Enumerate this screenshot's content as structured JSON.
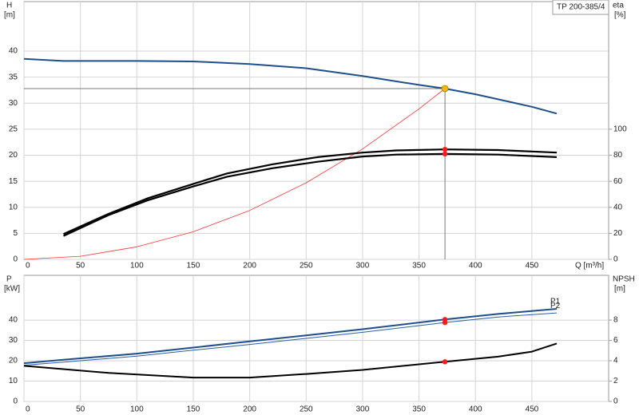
{
  "chart_data": [
    {
      "type": "line",
      "title": "TP 200-385/4",
      "xlabel": "Q [m³/h]",
      "ylabel": "H",
      "yunit": "[m]",
      "y2label": "eta",
      "y2unit": "[%]",
      "xlim": [
        0,
        518
      ],
      "xticks": [
        0,
        50,
        100,
        150,
        200,
        250,
        300,
        350,
        400,
        450
      ],
      "ylim": [
        0,
        49.5
      ],
      "yticks": [
        0,
        5,
        10,
        15,
        20,
        25,
        30,
        35,
        40
      ],
      "y2lim": [
        0,
        198
      ],
      "y2ticks": [
        0,
        20,
        40,
        60,
        80,
        100
      ],
      "grid": true,
      "marked_x": 373,
      "marker_color": "#ff1a1a",
      "duty_point": {
        "x": 373,
        "y": 32.8,
        "color": "#f5b800"
      },
      "series": [
        {
          "color": "#1f4e8c",
          "width": 2,
          "x": [
            0,
            35,
            100,
            150,
            200,
            250,
            300,
            350,
            373,
            400,
            450,
            472
          ],
          "values": [
            38.5,
            38.1,
            38.1,
            38.0,
            37.5,
            36.7,
            35.2,
            33.5,
            32.8,
            31.7,
            29.3,
            28.0
          ]
        },
        {
          "color": "#ff3333",
          "width": 0.8,
          "x": [
            0,
            50,
            100,
            150,
            200,
            250,
            300,
            350,
            373
          ],
          "values": [
            0,
            0.6,
            2.4,
            5.3,
            9.4,
            14.7,
            21.2,
            28.9,
            32.8
          ]
        },
        {
          "color": "#000000",
          "width": 2.2,
          "axis": "y2",
          "marked": true,
          "x": [
            35,
            75,
            110,
            150,
            180,
            220,
            260,
            300,
            330,
            373,
            420,
            472
          ],
          "values": [
            19.5,
            35,
            47,
            58,
            66,
            73,
            78.5,
            82,
            83.7,
            84.5,
            84,
            82
          ]
        },
        {
          "color": "#000000",
          "width": 2.2,
          "axis": "y2",
          "marked": true,
          "x": [
            35,
            75,
            110,
            150,
            180,
            220,
            260,
            300,
            330,
            373,
            420,
            472
          ],
          "values": [
            18,
            34,
            45.5,
            56,
            63.5,
            70,
            75,
            79,
            80.5,
            81,
            80.5,
            78.5
          ]
        }
      ]
    },
    {
      "type": "line",
      "ylabel": "P",
      "yunit": "[kW]",
      "y2label": "NPSH",
      "y2unit": "[m]",
      "xlim": [
        0,
        518
      ],
      "xticks": [
        0,
        50,
        100,
        150,
        200,
        250,
        300,
        350,
        400,
        450
      ],
      "ylim": [
        0,
        62
      ],
      "yticks": [
        0,
        10,
        20,
        30,
        40
      ],
      "y2lim": [
        0,
        12.4
      ],
      "y2ticks": [
        0,
        2,
        4,
        6,
        8
      ],
      "grid": true,
      "marked_x": 373,
      "marker_color": "#ff1a1a",
      "series": [
        {
          "name": "P1",
          "color": "#1f4e8c",
          "width": 2,
          "marked": true,
          "x": [
            0,
            35,
            100,
            150,
            200,
            250,
            300,
            373,
            420,
            472
          ],
          "values": [
            18.8,
            20.5,
            23.5,
            26.5,
            29.5,
            32.5,
            35.5,
            40.3,
            43,
            45.5
          ]
        },
        {
          "name": "P2",
          "color": "#2a5da8",
          "width": 1,
          "marked": true,
          "x": [
            0,
            35,
            100,
            150,
            200,
            250,
            300,
            373,
            420,
            472
          ],
          "values": [
            17.8,
            19.3,
            22.3,
            25.2,
            28,
            31,
            34,
            38.8,
            41.5,
            43.5
          ]
        },
        {
          "color": "#000000",
          "width": 2,
          "axis": "y2",
          "marked": true,
          "x": [
            0,
            75,
            150,
            200,
            250,
            300,
            373,
            420,
            450,
            472
          ],
          "values": [
            3.5,
            2.8,
            2.35,
            2.35,
            2.7,
            3.1,
            3.9,
            4.4,
            4.9,
            5.7
          ]
        }
      ]
    }
  ]
}
